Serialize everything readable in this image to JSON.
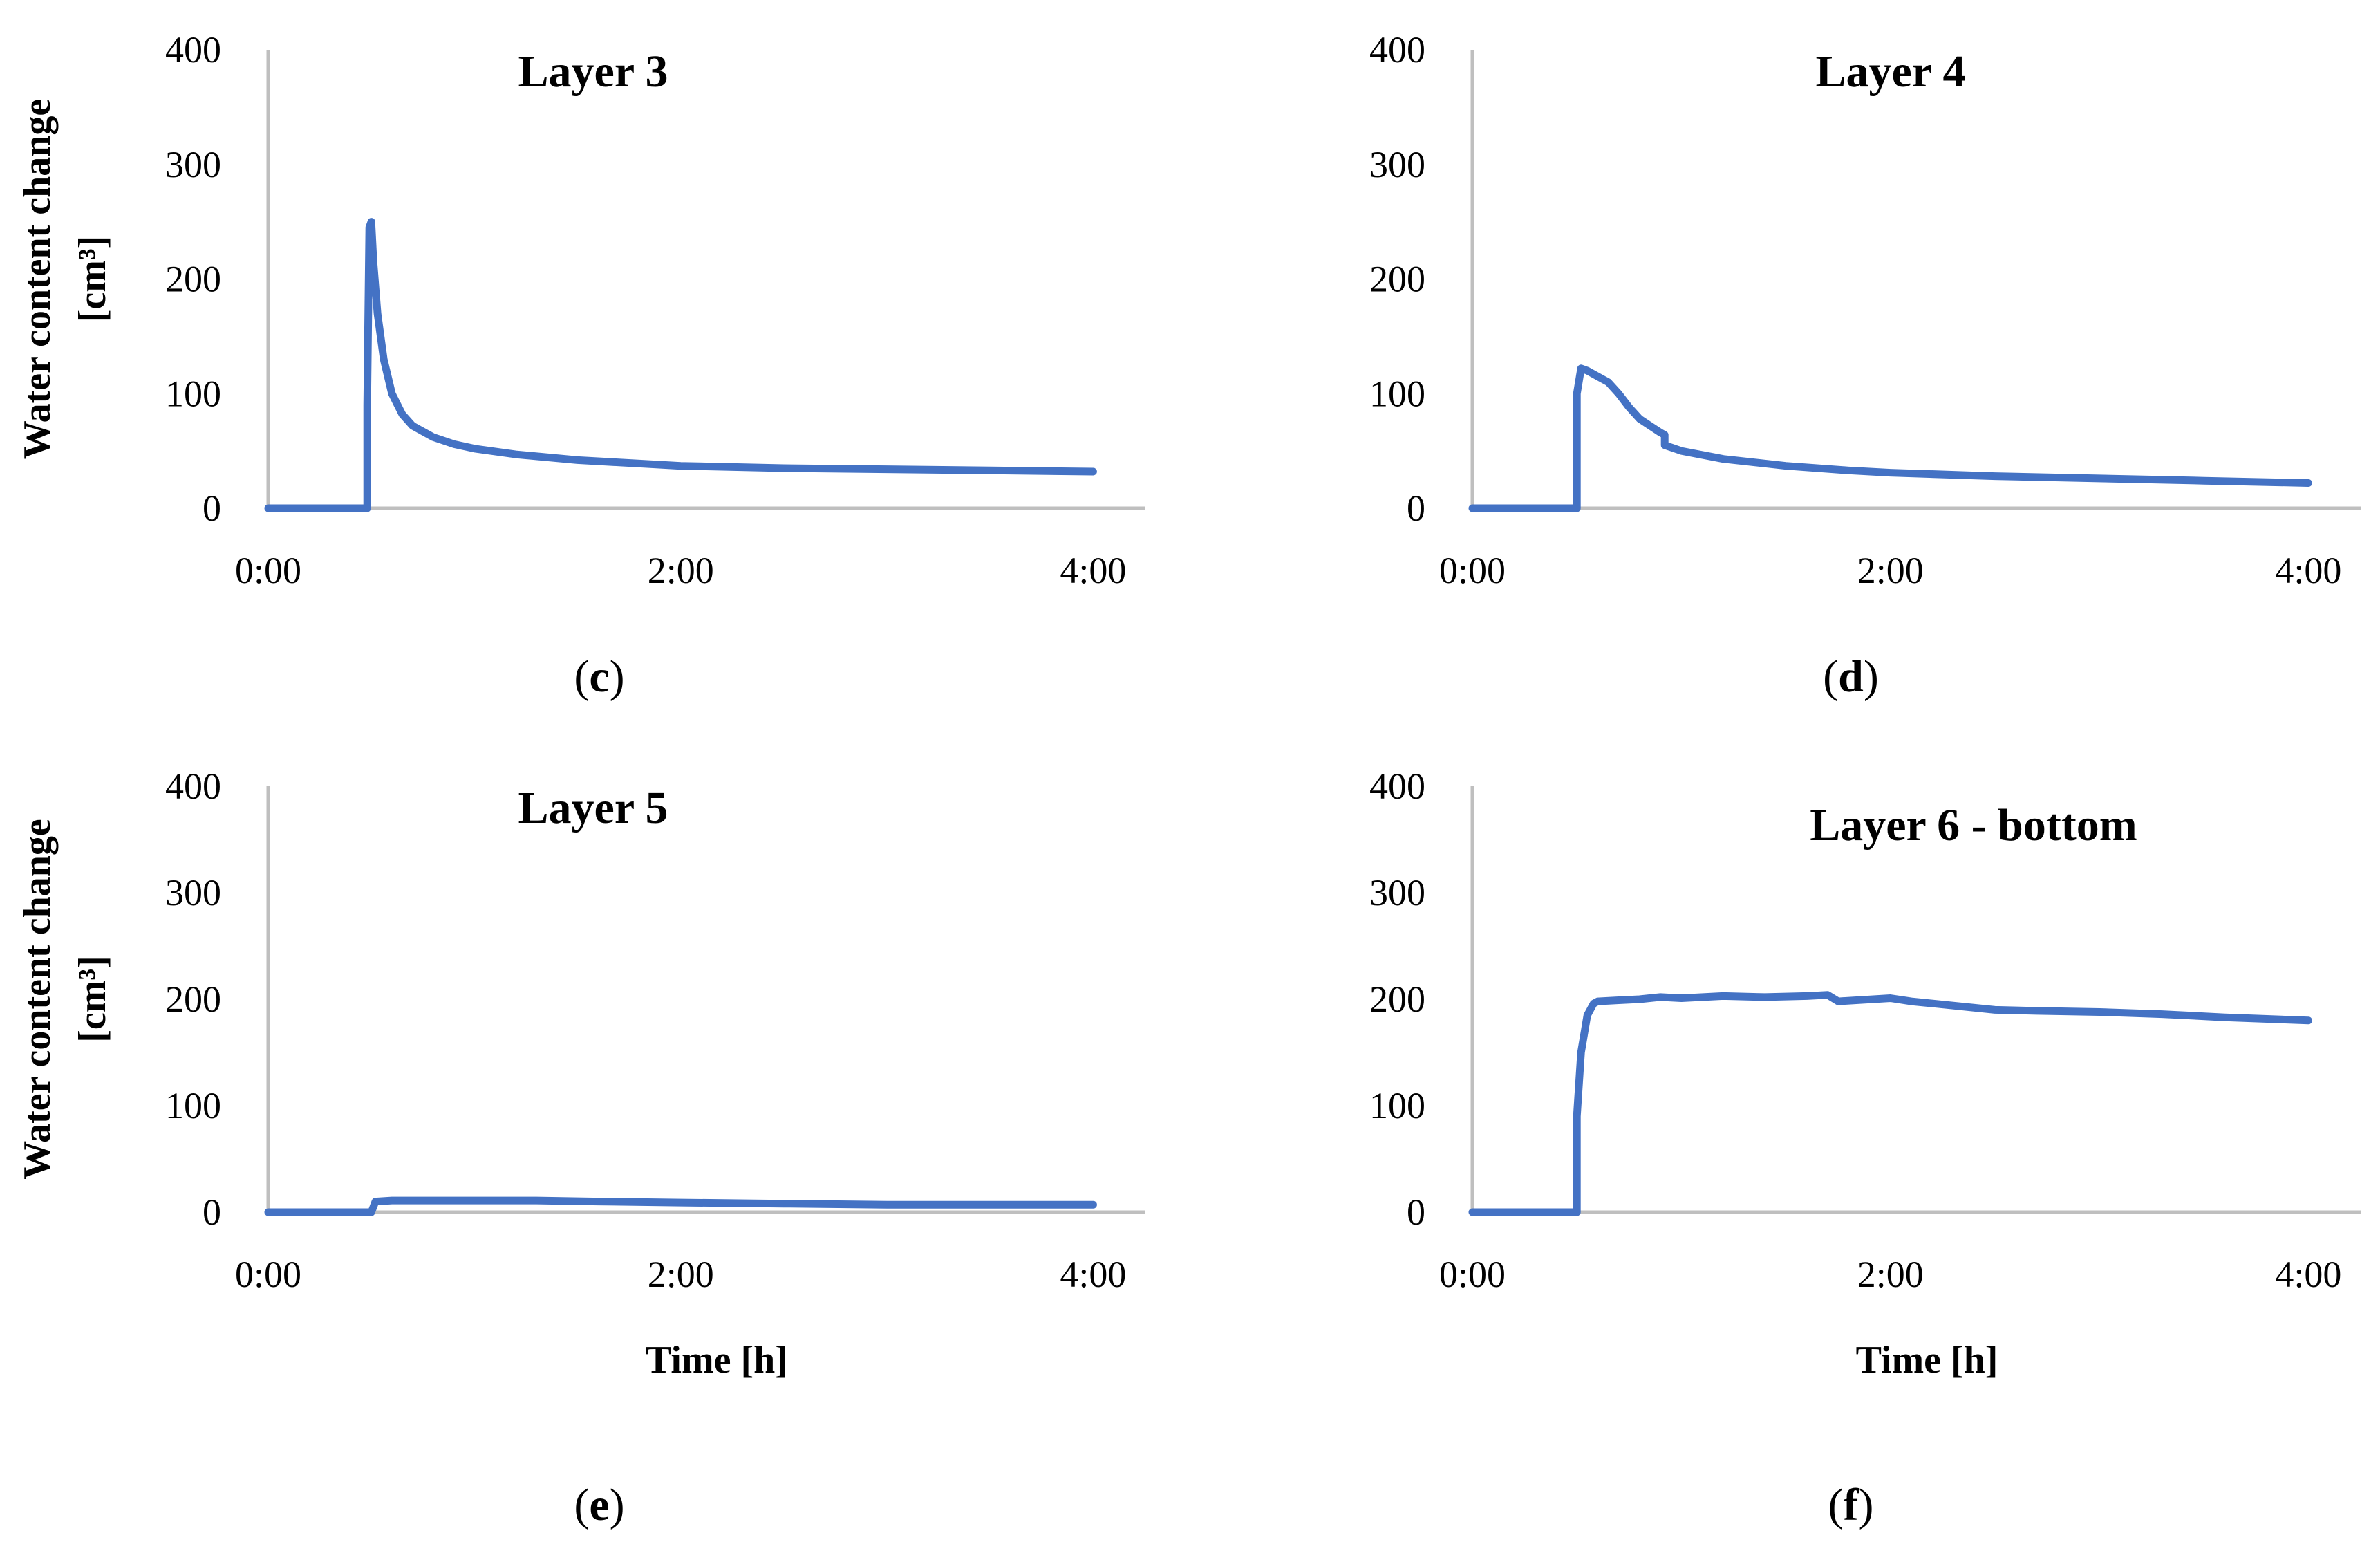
{
  "chart_data": [
    {
      "type": "line",
      "panel": "c",
      "title": "Layer 3",
      "ylabel_line1": "Water content change",
      "ylabel_line2": "[cm³]",
      "xlabel": "",
      "caption_open": "(",
      "caption_letter": "c",
      "caption_close": ")",
      "ylim": [
        0,
        400
      ],
      "yticks": [
        "0",
        "100",
        "200",
        "300",
        "400"
      ],
      "xlim": [
        0,
        4.25
      ],
      "xticks": [
        {
          "v": 0,
          "label": "0:00"
        },
        {
          "v": 2,
          "label": "2:00"
        },
        {
          "v": 4,
          "label": "4:00"
        }
      ],
      "series": [
        {
          "color": "#4472c4",
          "x": [
            0,
            0.48,
            0.48,
            0.49,
            0.5,
            0.51,
            0.53,
            0.56,
            0.6,
            0.65,
            0.7,
            0.8,
            0.9,
            1.0,
            1.2,
            1.5,
            1.8,
            2.0,
            2.5,
            3.0,
            3.5,
            4.0
          ],
          "y": [
            0,
            0,
            90,
            245,
            250,
            215,
            170,
            130,
            100,
            82,
            72,
            62,
            56,
            52,
            47,
            42,
            39,
            37,
            35,
            34,
            33,
            32
          ]
        }
      ]
    },
    {
      "type": "line",
      "panel": "d",
      "title": "Layer 4",
      "ylabel_line1": "",
      "ylabel_line2": "",
      "xlabel": "",
      "caption_open": "(",
      "caption_letter": "d",
      "caption_close": ")",
      "ylim": [
        0,
        400
      ],
      "yticks": [
        "0",
        "100",
        "200",
        "300",
        "400"
      ],
      "xlim": [
        0,
        4.25
      ],
      "xticks": [
        {
          "v": 0,
          "label": "0:00"
        },
        {
          "v": 2,
          "label": "2:00"
        },
        {
          "v": 4,
          "label": "4:00"
        }
      ],
      "series": [
        {
          "color": "#4472c4",
          "x": [
            0,
            0.5,
            0.5,
            0.52,
            0.55,
            0.6,
            0.65,
            0.7,
            0.75,
            0.8,
            0.85,
            0.9,
            0.92,
            0.92,
            1.0,
            1.2,
            1.5,
            1.8,
            2.0,
            2.5,
            3.0,
            3.5,
            4.0
          ],
          "y": [
            0,
            0,
            100,
            122,
            120,
            115,
            110,
            100,
            88,
            78,
            72,
            66,
            64,
            55,
            50,
            43,
            37,
            33,
            31,
            28,
            26,
            24,
            22
          ]
        }
      ]
    },
    {
      "type": "line",
      "panel": "e",
      "title": "Layer 5",
      "ylabel_line1": "Water content change",
      "ylabel_line2": "[cm³]",
      "xlabel": "Time [h]",
      "caption_open": "(",
      "caption_letter": "e",
      "caption_close": ")",
      "ylim": [
        0,
        400
      ],
      "yticks": [
        "0",
        "100",
        "200",
        "300",
        "400"
      ],
      "xlim": [
        0,
        4.25
      ],
      "xticks": [
        {
          "v": 0,
          "label": "0:00"
        },
        {
          "v": 2,
          "label": "2:00"
        },
        {
          "v": 4,
          "label": "4:00"
        }
      ],
      "series": [
        {
          "color": "#4472c4",
          "x": [
            0,
            0.5,
            0.52,
            0.6,
            0.8,
            1.0,
            1.3,
            1.6,
            2.0,
            2.5,
            3.0,
            3.5,
            4.0
          ],
          "y": [
            0,
            0,
            10,
            11,
            11,
            11,
            11,
            10,
            9,
            8,
            7,
            7,
            7
          ]
        }
      ]
    },
    {
      "type": "line",
      "panel": "f",
      "title": "Layer 6 - bottom",
      "ylabel_line1": "",
      "ylabel_line2": "",
      "xlabel": "Time [h]",
      "caption_open": "(",
      "caption_letter": "f",
      "caption_close": ")",
      "ylim": [
        0,
        400
      ],
      "yticks": [
        "0",
        "100",
        "200",
        "300",
        "400"
      ],
      "xlim": [
        0,
        4.25
      ],
      "xticks": [
        {
          "v": 0,
          "label": "0:00"
        },
        {
          "v": 2,
          "label": "2:00"
        },
        {
          "v": 4,
          "label": "4:00"
        }
      ],
      "series": [
        {
          "color": "#4472c4",
          "x": [
            0,
            0.5,
            0.5,
            0.52,
            0.55,
            0.58,
            0.6,
            0.7,
            0.8,
            0.9,
            1.0,
            1.2,
            1.4,
            1.6,
            1.7,
            1.75,
            2.0,
            2.1,
            2.3,
            2.5,
            2.7,
            3.0,
            3.3,
            3.6,
            4.0
          ],
          "y": [
            0,
            0,
            90,
            150,
            185,
            196,
            198,
            199,
            200,
            202,
            201,
            203,
            202,
            203,
            204,
            198,
            201,
            198,
            194,
            190,
            189,
            188,
            186,
            183,
            180
          ]
        }
      ]
    }
  ]
}
